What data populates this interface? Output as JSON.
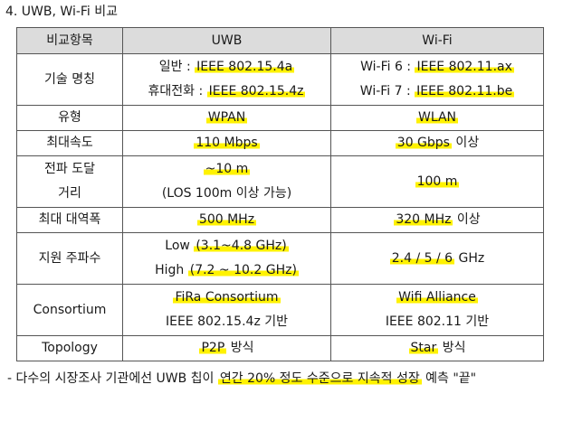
{
  "section_title": "4. UWB, Wi-Fi 비교",
  "table": {
    "header": [
      "비교항목",
      "UWB",
      "Wi-Fi"
    ],
    "rows": [
      {
        "label": [
          "기술 명칭"
        ],
        "uwb": [
          {
            "pre": "일반 : ",
            "hl": "IEEE 802.15.4a"
          },
          {
            "pre": "휴대전화 : ",
            "hl": "IEEE 802.15.4z"
          }
        ],
        "wifi": [
          {
            "pre": "Wi-Fi 6 : ",
            "hl": "IEEE 802.11.ax"
          },
          {
            "pre": "Wi-Fi 7 : ",
            "hl": "IEEE 802.11.be"
          }
        ]
      },
      {
        "label": [
          "유형"
        ],
        "uwb": [
          {
            "pre": "",
            "hl": "WPAN"
          }
        ],
        "wifi": [
          {
            "pre": "",
            "hl": "WLAN"
          }
        ]
      },
      {
        "label": [
          "최대속도"
        ],
        "uwb": [
          {
            "pre": "",
            "hl": "110 Mbps"
          }
        ],
        "wifi": [
          {
            "pre": "",
            "hl": "30 Gbps",
            "post": " 이상"
          }
        ]
      },
      {
        "label": [
          "전파 도달",
          "거리"
        ],
        "uwb": [
          {
            "pre": "",
            "hl": "~10 m"
          },
          {
            "pre": "(LOS 100m 이상 가능)",
            "hl": ""
          }
        ],
        "wifi": [
          {
            "pre": "",
            "hl": "100 m"
          }
        ]
      },
      {
        "label": [
          "최대 대역폭"
        ],
        "uwb": [
          {
            "pre": "",
            "hl": "500 MHz"
          }
        ],
        "wifi": [
          {
            "pre": "",
            "hl": "320 MHz",
            "post": " 이상"
          }
        ]
      },
      {
        "label": [
          "지원 주파수"
        ],
        "uwb": [
          {
            "pre": "Low ",
            "hl": "(3.1~4.8 GHz)"
          },
          {
            "pre": "High ",
            "hl": "(7.2 ~ 10.2 GHz)"
          }
        ],
        "wifi": [
          {
            "pre": "",
            "hl": "2.4 / 5 / 6",
            "post": " GHz"
          }
        ]
      },
      {
        "label": [
          "Consortium"
        ],
        "uwb": [
          {
            "pre": "",
            "hl": "FiRa Consortium"
          },
          {
            "pre": "IEEE 802.15.4z 기반",
            "hl": ""
          }
        ],
        "wifi": [
          {
            "pre": "",
            "hl": "Wifi Alliance"
          },
          {
            "pre": "IEEE 802.11 기반",
            "hl": ""
          }
        ]
      },
      {
        "label": [
          "Topology"
        ],
        "uwb": [
          {
            "pre": "",
            "hl": "P2P",
            "post": " 방식"
          }
        ],
        "wifi": [
          {
            "pre": "",
            "hl": "Star",
            "post": " 방식"
          }
        ]
      }
    ]
  },
  "note": {
    "pre": "- 다수의 시장조사 기관에선 UWB 칩이 ",
    "hl": "연간 20% 정도 수준으로 지속적 성장",
    "post": " 예측 \"끝\""
  },
  "colors": {
    "highlight": "#fff200",
    "header_bg": "#dcdcdc",
    "border": "#555555"
  }
}
